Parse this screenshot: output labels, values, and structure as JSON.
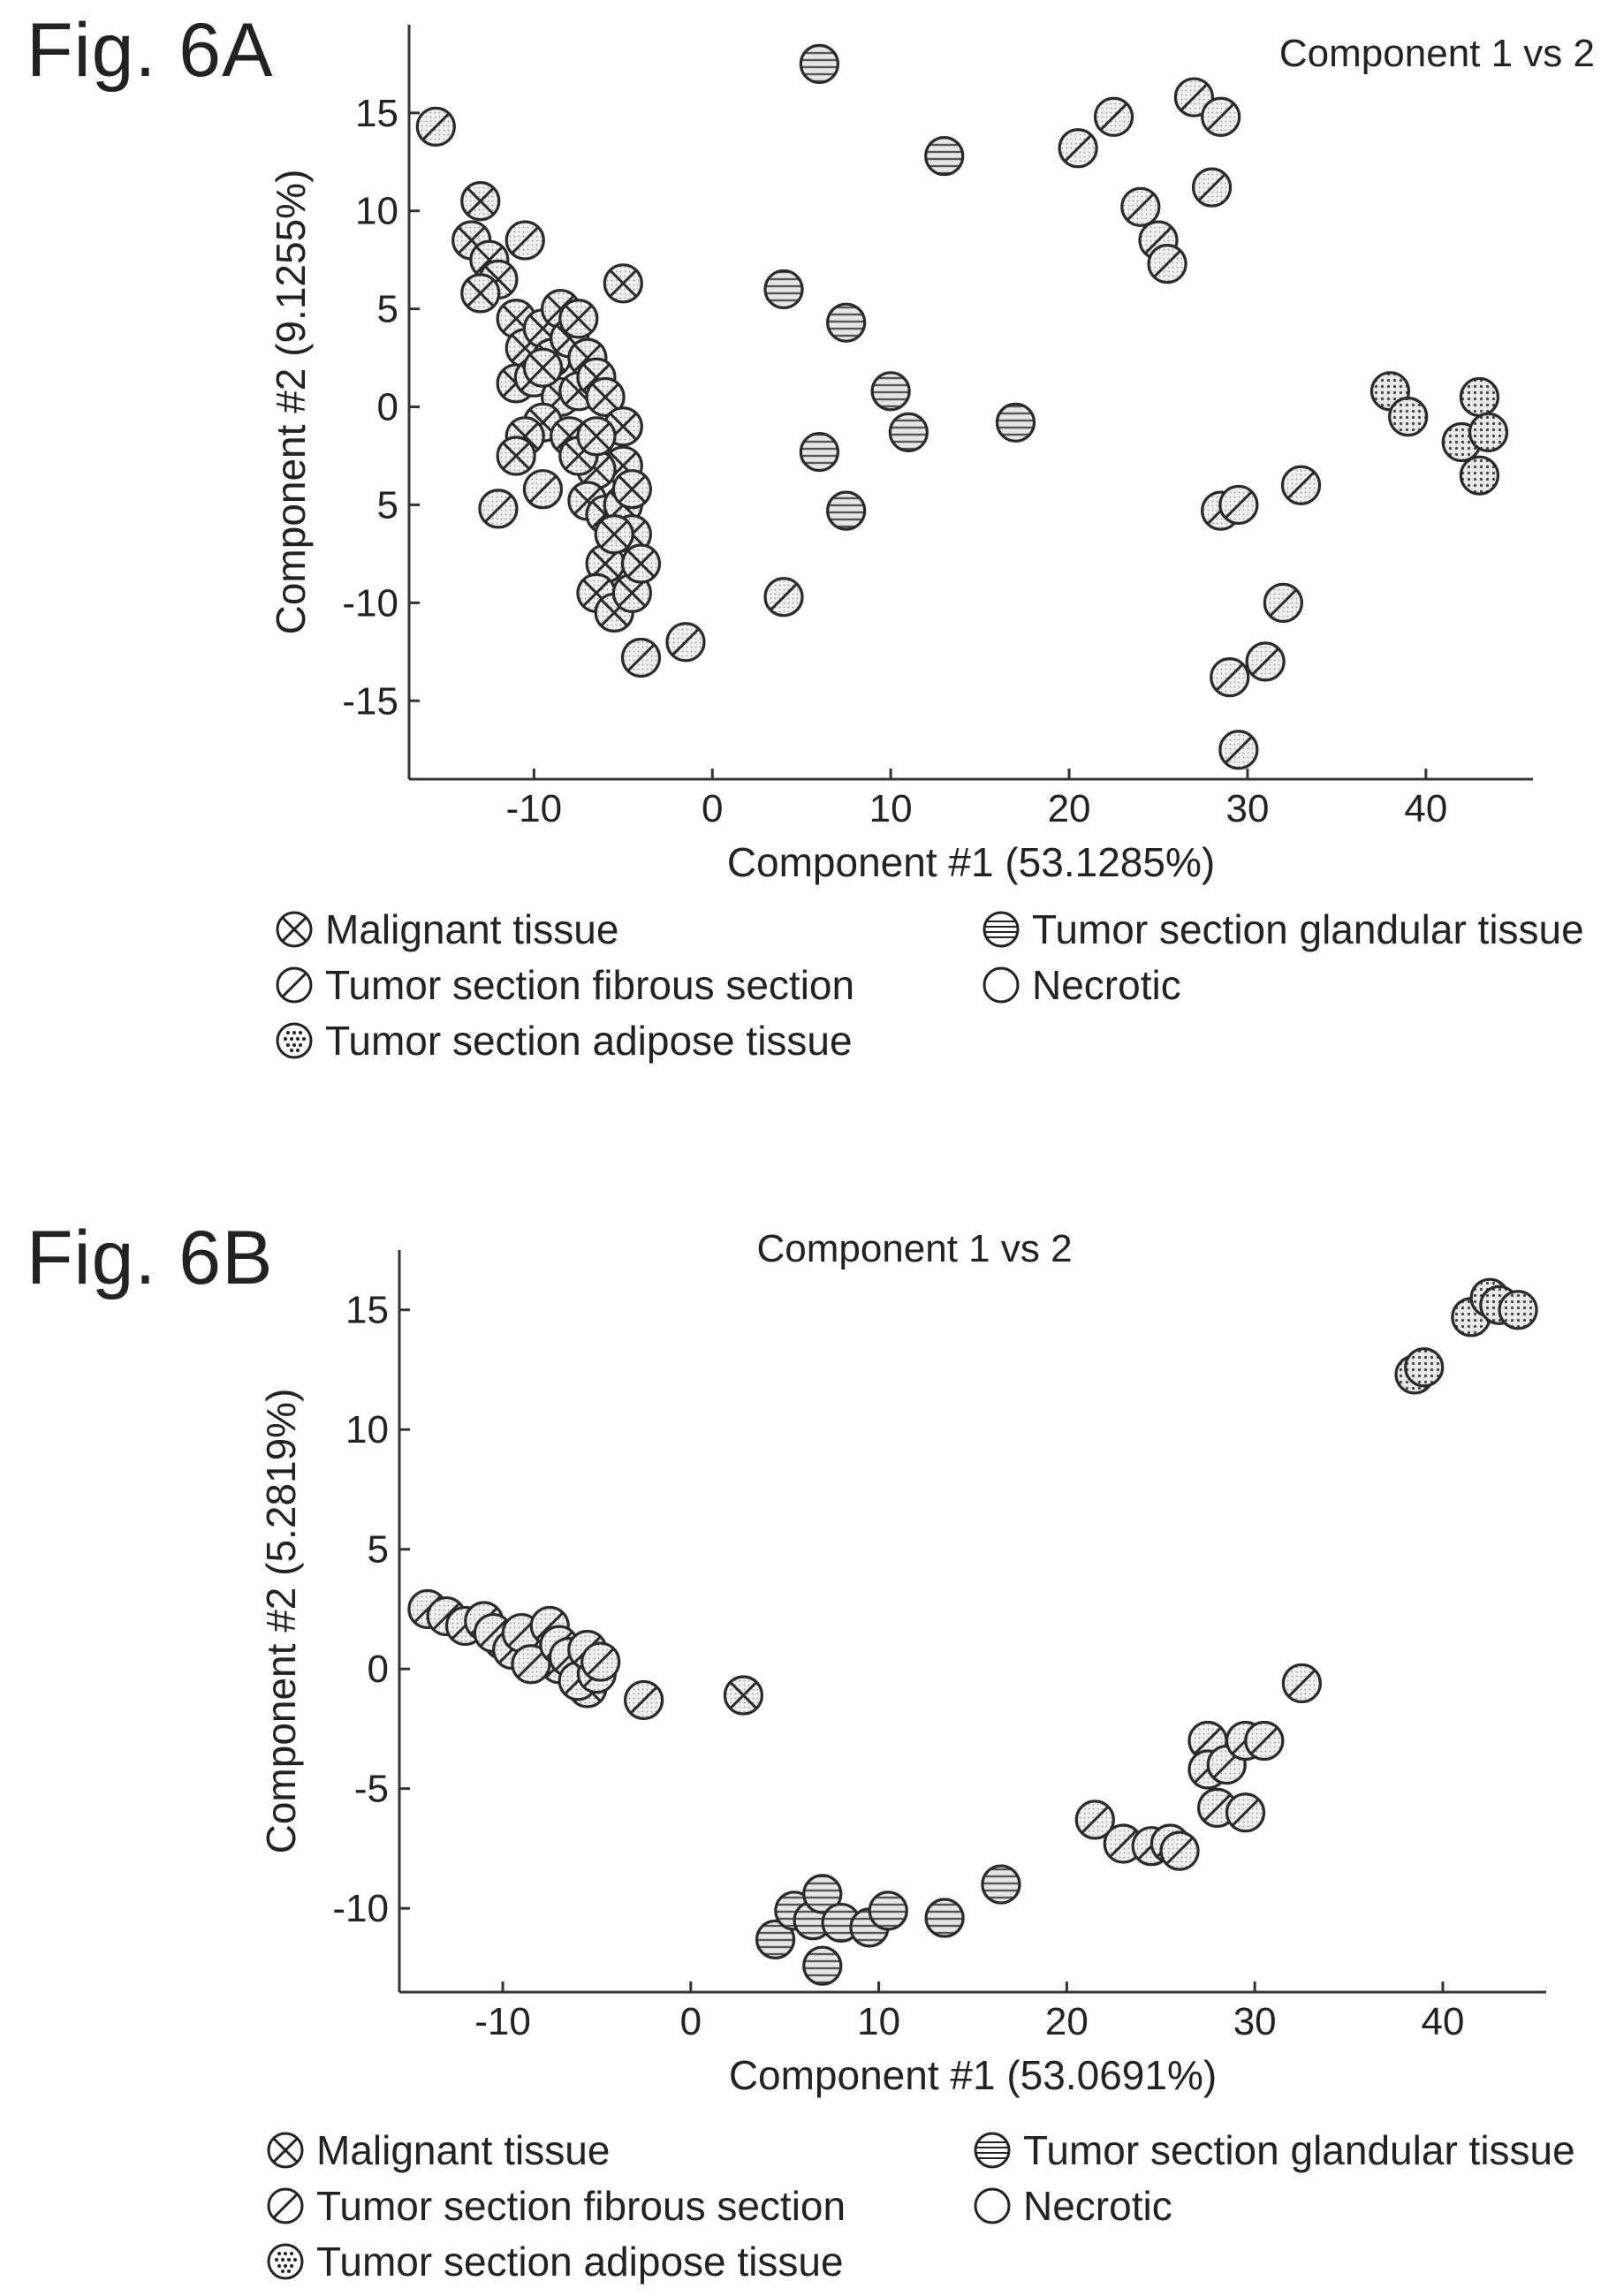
{
  "figures": [
    {
      "label": "Fig. 6A",
      "chart_title": "Component 1 vs 2",
      "xlabel": "Component #1 (53.1285%)",
      "ylabel": "Component #2 (9.1255%)"
    },
    {
      "label": "Fig. 6B",
      "chart_title": "Component 1 vs 2",
      "xlabel": "Component #1 (53.0691%)",
      "ylabel": "Component #2 (5.2819%)"
    }
  ],
  "legend": [
    {
      "label": "Malignant tissue",
      "icon": "crosshatch-circle-icon"
    },
    {
      "label": "Tumor section glandular tissue",
      "icon": "horizontal-stripe-circle-icon"
    },
    {
      "label": "Tumor section fibrous section",
      "icon": "diagonal-stripe-circle-icon"
    },
    {
      "label": "Necrotic",
      "icon": "empty-circle-icon"
    },
    {
      "label": "Tumor section adipose tissue",
      "icon": "dotted-circle-icon"
    }
  ],
  "chart_data": [
    {
      "type": "scatter",
      "title": "Component 1 vs 2",
      "xlabel": "Component #1 (53.1285%)",
      "ylabel": "Component #2 (9.1255%)",
      "xlim": [
        -17,
        46
      ],
      "ylim": [
        -19,
        19.5
      ],
      "xticks": [
        -10,
        0,
        10,
        20,
        30,
        40
      ],
      "yticks": [
        -15,
        -10,
        -5,
        0,
        5,
        10,
        15
      ],
      "ytick_labels": [
        "-15",
        "-10",
        "5",
        "0",
        "5",
        "10",
        "15"
      ],
      "grid": false,
      "series": [
        {
          "name": "Malignant tissue",
          "pattern": "cross",
          "points": [
            [
              -13,
              10.5
            ],
            [
              -13.5,
              8.5
            ],
            [
              -12.5,
              7.5
            ],
            [
              -12,
              6.5
            ],
            [
              -13,
              5.8
            ],
            [
              -11,
              4.5
            ],
            [
              -10.5,
              3
            ],
            [
              -11,
              1.2
            ],
            [
              -10,
              1.5
            ],
            [
              -9.5,
              4
            ],
            [
              -9,
              2.5
            ],
            [
              -8.5,
              5
            ],
            [
              -8,
              3.5
            ],
            [
              -8.5,
              0.5
            ],
            [
              -9.5,
              -0.8
            ],
            [
              -10.5,
              -1.5
            ],
            [
              -8,
              -1.5
            ],
            [
              -7.5,
              0.8
            ],
            [
              -7,
              2.5
            ],
            [
              -6.5,
              1.5
            ],
            [
              -6,
              0.5
            ],
            [
              -5,
              -1
            ],
            [
              -5,
              -3
            ],
            [
              -6.5,
              -3.2
            ],
            [
              -7,
              -4.8
            ],
            [
              -6,
              -5.5
            ],
            [
              -5,
              -5
            ],
            [
              -4.5,
              -6.5
            ],
            [
              -6,
              -8
            ],
            [
              -6.5,
              -9.5
            ],
            [
              -5.5,
              -10.5
            ],
            [
              -4.5,
              -9.5
            ],
            [
              -4,
              -8
            ],
            [
              -5.5,
              -6.5
            ],
            [
              -7.5,
              -2.5
            ],
            [
              -4.5,
              -4.2
            ],
            [
              -11,
              -2.5
            ],
            [
              -9.5,
              2
            ],
            [
              -7.5,
              4.5
            ],
            [
              -6.5,
              -1.5
            ],
            [
              -5,
              6.3
            ]
          ]
        },
        {
          "name": "Tumor section fibrous section",
          "pattern": "diagonal",
          "points": [
            [
              -15.5,
              14.3
            ],
            [
              -10.5,
              8.5
            ],
            [
              -12,
              -5.2
            ],
            [
              -9.5,
              -4.2
            ],
            [
              -4,
              -12.8
            ],
            [
              -1.5,
              -12
            ],
            [
              4,
              -9.7
            ],
            [
              20.5,
              13.2
            ],
            [
              22.5,
              14.8
            ],
            [
              24,
              10.2
            ],
            [
              25,
              8.5
            ],
            [
              25.5,
              7.3
            ],
            [
              27,
              15.8
            ],
            [
              28.5,
              14.8
            ],
            [
              28,
              11.2
            ],
            [
              28.5,
              -5.3
            ],
            [
              29.5,
              -5
            ],
            [
              33,
              -4
            ],
            [
              32,
              -10
            ],
            [
              31,
              -13
            ],
            [
              29,
              -13.8
            ],
            [
              29.5,
              -17.5
            ]
          ]
        },
        {
          "name": "Tumor section adipose tissue",
          "pattern": "dots",
          "points": [
            [
              38,
              0.8
            ],
            [
              39,
              -0.5
            ],
            [
              42,
              -1.8
            ],
            [
              43,
              0.5
            ],
            [
              43.5,
              -1.3
            ],
            [
              43,
              -3.5
            ]
          ]
        },
        {
          "name": "Tumor section glandular tissue",
          "pattern": "hlines",
          "points": [
            [
              6,
              17.5
            ],
            [
              13,
              12.8
            ],
            [
              4,
              6
            ],
            [
              7.5,
              4.3
            ],
            [
              10,
              0.8
            ],
            [
              11,
              -1.3
            ],
            [
              6,
              -2.3
            ],
            [
              7.5,
              -5.3
            ],
            [
              17,
              -0.8
            ]
          ]
        }
      ]
    },
    {
      "type": "scatter",
      "title": "Component 1 vs 2",
      "xlabel": "Component #1 (53.0691%)",
      "ylabel": "Component #2 (5.2819%)",
      "xlim": [
        -15.5,
        45.5
      ],
      "ylim": [
        -13.5,
        17.5
      ],
      "xticks": [
        -10,
        0,
        10,
        20,
        30,
        40
      ],
      "yticks": [
        -10,
        -5,
        0,
        5,
        10,
        15
      ],
      "grid": false,
      "series": [
        {
          "name": "Malignant tissue",
          "pattern": "cross",
          "points": [
            [
              -10,
              1.2
            ],
            [
              -8,
              0.8
            ],
            [
              -7,
              0.2
            ],
            [
              -6,
              0
            ],
            [
              -5.5,
              -0.8
            ],
            [
              2.8,
              -1.1
            ]
          ]
        },
        {
          "name": "Tumor section fibrous section",
          "pattern": "diagonal",
          "points": [
            [
              -14,
              2.5
            ],
            [
              -13,
              2.2
            ],
            [
              -12,
              1.8
            ],
            [
              -11,
              2
            ],
            [
              -10.5,
              1.5
            ],
            [
              -9.5,
              0.8
            ],
            [
              -9,
              1.5
            ],
            [
              -8.5,
              0.2
            ],
            [
              -7.5,
              1.8
            ],
            [
              -7,
              1
            ],
            [
              -6.5,
              0.5
            ],
            [
              -6,
              -0.5
            ],
            [
              -5,
              -0.2
            ],
            [
              -5.5,
              0.8
            ],
            [
              -4.8,
              0.3
            ],
            [
              -2.5,
              -1.3
            ],
            [
              21.5,
              -6.3
            ],
            [
              23,
              -7.3
            ],
            [
              24.5,
              -7.4
            ],
            [
              25.5,
              -7.3
            ],
            [
              26,
              -7.6
            ],
            [
              27.5,
              -3
            ],
            [
              27.5,
              -4.2
            ],
            [
              28.5,
              -4
            ],
            [
              28,
              -5.8
            ],
            [
              29.5,
              -3
            ],
            [
              30.5,
              -3
            ],
            [
              29.5,
              -6
            ],
            [
              32.5,
              -0.6
            ]
          ]
        },
        {
          "name": "Tumor section adipose tissue",
          "pattern": "dots",
          "points": [
            [
              38.5,
              12.3
            ],
            [
              39,
              12.6
            ],
            [
              41.5,
              14.7
            ],
            [
              42.5,
              15.5
            ],
            [
              43,
              15.2
            ],
            [
              44,
              15
            ]
          ]
        },
        {
          "name": "Tumor section glandular tissue",
          "pattern": "hlines",
          "points": [
            [
              4.5,
              -11.3
            ],
            [
              5.5,
              -10.1
            ],
            [
              6.5,
              -10.5
            ],
            [
              7,
              -9.4
            ],
            [
              7,
              -12.4
            ],
            [
              8,
              -10.6
            ],
            [
              9.5,
              -10.8
            ],
            [
              10.5,
              -10.1
            ],
            [
              13.5,
              -10.4
            ],
            [
              16.5,
              -9
            ]
          ]
        }
      ]
    }
  ]
}
